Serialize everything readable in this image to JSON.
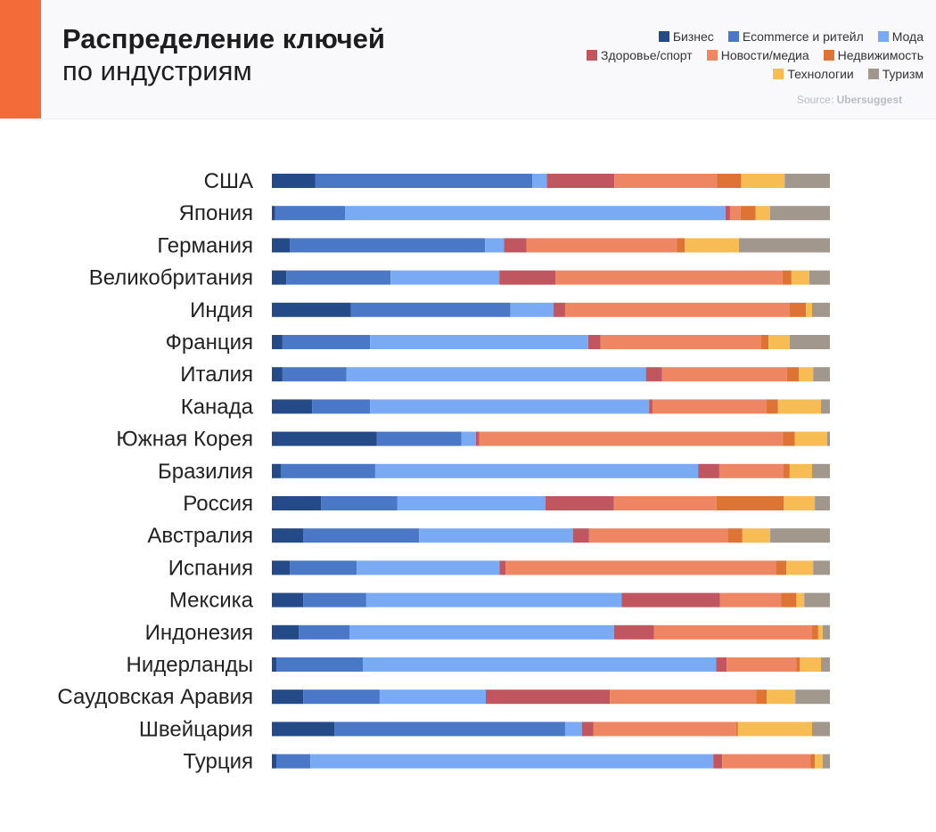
{
  "header": {
    "title": "Распределение ключей",
    "subtitle": "по индустриям",
    "source_label": "Source:",
    "source_name": "Ubersuggest",
    "accent_color": "#f26b38"
  },
  "chart_data": {
    "type": "bar",
    "orientation": "horizontal",
    "stacked": "percent",
    "title": "Распределение ключей по индустриям",
    "xlim": [
      0,
      100
    ],
    "grid": false,
    "legend_placement": "top-right",
    "categories": [
      "США",
      "Япония",
      "Германия",
      "Великобритания",
      "Индия",
      "Франция",
      "Италия",
      "Канада",
      "Южная Корея",
      "Бразилия",
      "Россия",
      "Австралия",
      "Испания",
      "Мексика",
      "Индонезия",
      "Нидерланды",
      "Саудовская Аравия",
      "Швейцария",
      "Турция"
    ],
    "series": [
      {
        "name": "Бизнес",
        "color": "#244a87",
        "values": [
          7.8,
          0.6,
          3.2,
          2.6,
          14.2,
          1.9,
          1.9,
          7.2,
          18.8,
          1.6,
          8.8,
          5.6,
          3.2,
          5.6,
          4.8,
          0.8,
          5.6,
          11.2,
          0.8
        ]
      },
      {
        "name": "Ecommerce и ритейл",
        "color": "#4b78c6",
        "values": [
          38.8,
          12.5,
          35.0,
          18.7,
          28.6,
          15.7,
          11.5,
          10.4,
          15.2,
          16.9,
          13.7,
          20.8,
          12.0,
          11.3,
          9.1,
          15.5,
          13.7,
          41.4,
          6.1
        ]
      },
      {
        "name": "Мода",
        "color": "#7baaf5",
        "values": [
          2.6,
          68.2,
          3.4,
          19.5,
          7.7,
          39.1,
          53.7,
          50.0,
          2.6,
          57.8,
          26.5,
          27.6,
          25.6,
          45.7,
          47.4,
          63.3,
          19.0,
          3.0,
          72.2
        ]
      },
      {
        "name": "Здоровье/спорт",
        "color": "#c0565f",
        "values": [
          12.1,
          0.8,
          4.0,
          10.1,
          2.1,
          2.2,
          2.9,
          0.6,
          0.6,
          3.8,
          12.3,
          2.9,
          1.1,
          17.6,
          7.2,
          1.9,
          22.2,
          2.1,
          1.6
        ]
      },
      {
        "name": "Новости/медиа",
        "color": "#ef8663",
        "values": [
          18.4,
          1.9,
          27.0,
          40.7,
          40.3,
          28.8,
          22.4,
          20.4,
          54.5,
          11.5,
          18.4,
          24.9,
          48.4,
          11.0,
          28.3,
          12.5,
          26.2,
          25.6,
          15.8
        ]
      },
      {
        "name": "Недвижимость",
        "color": "#dd7335",
        "values": [
          4.3,
          2.7,
          1.4,
          1.6,
          2.9,
          1.3,
          2.1,
          2.1,
          2.1,
          1.1,
          12.0,
          2.6,
          1.9,
          2.7,
          1.1,
          0.6,
          1.9,
          0.3,
          0.8
        ]
      },
      {
        "name": "Технологии",
        "color": "#f7bc53",
        "values": [
          7.8,
          2.6,
          9.7,
          3.2,
          1.1,
          3.8,
          2.6,
          7.7,
          5.8,
          4.0,
          5.6,
          5.0,
          4.8,
          1.4,
          0.8,
          3.8,
          5.1,
          13.3,
          1.4
        ]
      },
      {
        "name": "Туризм",
        "color": "#a2978d",
        "values": [
          8.1,
          10.7,
          16.3,
          3.7,
          3.2,
          7.2,
          3.0,
          1.6,
          0.5,
          3.2,
          2.7,
          10.7,
          3.0,
          4.6,
          1.3,
          1.6,
          6.2,
          3.2,
          1.3
        ]
      }
    ]
  }
}
